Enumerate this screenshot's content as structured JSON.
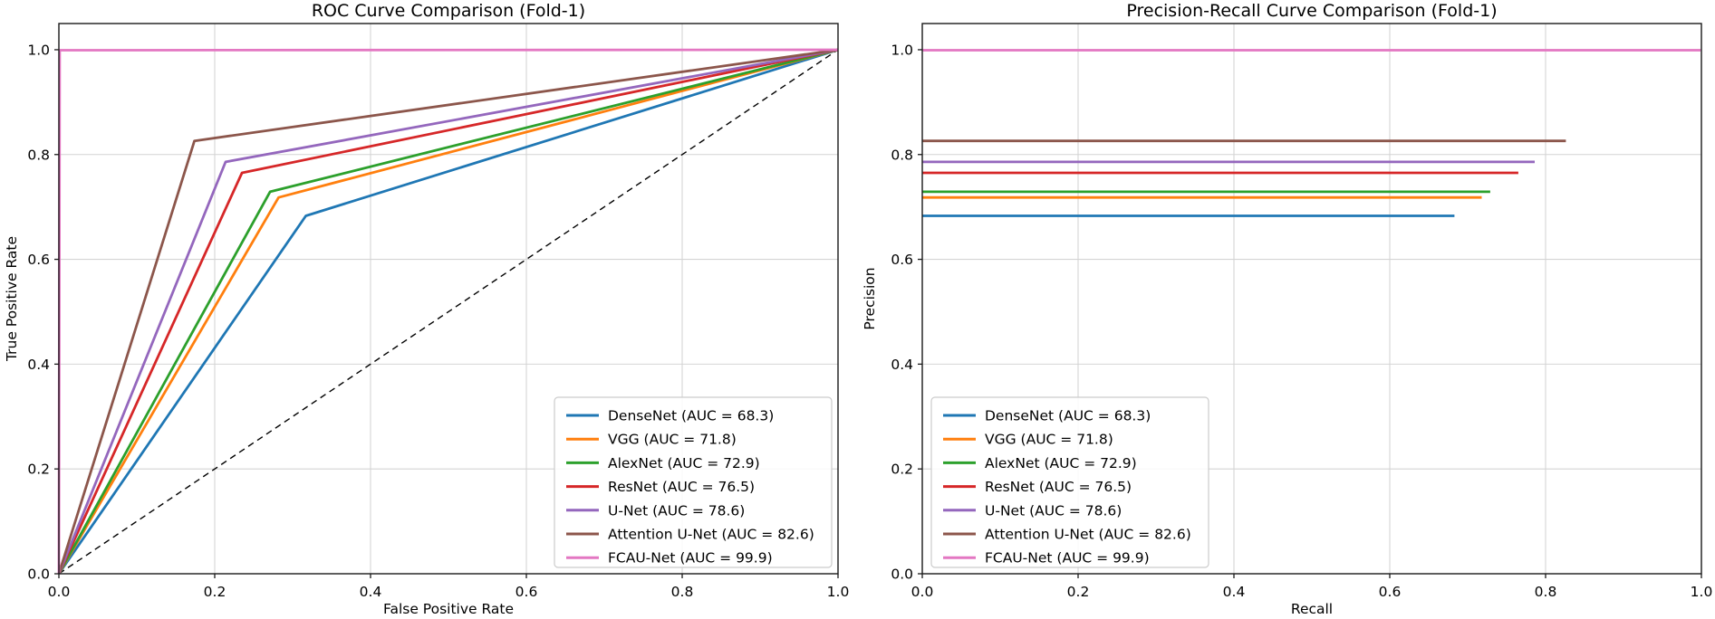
{
  "figure": {
    "background": "#ffffff",
    "text_color": "#000000"
  },
  "chart_data": [
    {
      "type": "line",
      "title": "ROC Curve Comparison (Fold-1)",
      "xlabel": "False Positive Rate",
      "ylabel": "True Positive Rate",
      "xlim": [
        0.0,
        1.0
      ],
      "ylim": [
        0.0,
        1.05
      ],
      "xticks": [
        0.0,
        0.2,
        0.4,
        0.6,
        0.8,
        1.0
      ],
      "yticks": [
        0.0,
        0.2,
        0.4,
        0.6,
        0.8,
        1.0
      ],
      "grid": true,
      "legend_position": "lower-right",
      "reference_line": {
        "name": "chance-diagonal",
        "from": [
          0.0,
          0.0
        ],
        "to": [
          1.0,
          1.0
        ],
        "color": "#000000",
        "dash": "7 5",
        "width": 1.4
      },
      "series": [
        {
          "name": "densenet",
          "label": "DenseNet (AUC = 68.3)",
          "auc": 68.3,
          "color": "#1f77b4",
          "points": [
            [
              0.0,
              0.0
            ],
            [
              0.317,
              0.683
            ],
            [
              1.0,
              1.0
            ]
          ]
        },
        {
          "name": "vgg",
          "label": "VGG (AUC = 71.8)",
          "auc": 71.8,
          "color": "#ff7f0e",
          "points": [
            [
              0.0,
              0.0
            ],
            [
              0.282,
              0.718
            ],
            [
              1.0,
              1.0
            ]
          ]
        },
        {
          "name": "alexnet",
          "label": "AlexNet (AUC = 72.9)",
          "auc": 72.9,
          "color": "#2ca02c",
          "points": [
            [
              0.0,
              0.0
            ],
            [
              0.271,
              0.729
            ],
            [
              1.0,
              1.0
            ]
          ]
        },
        {
          "name": "resnet",
          "label": "ResNet (AUC = 76.5)",
          "auc": 76.5,
          "color": "#d62728",
          "points": [
            [
              0.0,
              0.0
            ],
            [
              0.235,
              0.765
            ],
            [
              1.0,
              1.0
            ]
          ]
        },
        {
          "name": "unet",
          "label": "U-Net (AUC = 78.6)",
          "auc": 78.6,
          "color": "#9467bd",
          "points": [
            [
              0.0,
              0.0
            ],
            [
              0.214,
              0.786
            ],
            [
              1.0,
              1.0
            ]
          ]
        },
        {
          "name": "attention-unet",
          "label": "Attention U-Net (AUC = 82.6)",
          "auc": 82.6,
          "color": "#8c564b",
          "points": [
            [
              0.0,
              0.0
            ],
            [
              0.174,
              0.826
            ],
            [
              1.0,
              1.0
            ]
          ]
        },
        {
          "name": "fcau-net",
          "label": "FCAU-Net (AUC = 99.9)",
          "auc": 99.9,
          "color": "#e377c2",
          "points": [
            [
              0.0,
              0.0
            ],
            [
              0.001,
              0.999
            ],
            [
              1.0,
              1.0
            ]
          ]
        }
      ]
    },
    {
      "type": "line",
      "title": "Precision-Recall Curve Comparison (Fold-1)",
      "xlabel": "Recall",
      "ylabel": "Precision",
      "xlim": [
        0.0,
        1.0
      ],
      "ylim": [
        0.0,
        1.05
      ],
      "xticks": [
        0.0,
        0.2,
        0.4,
        0.6,
        0.8,
        1.0
      ],
      "yticks": [
        0.0,
        0.2,
        0.4,
        0.6,
        0.8,
        1.0
      ],
      "grid": true,
      "legend_position": "lower-left",
      "series": [
        {
          "name": "densenet",
          "label": "DenseNet (AUC = 68.3)",
          "auc": 68.3,
          "color": "#1f77b4",
          "points": [
            [
              0.0,
              0.683
            ],
            [
              0.683,
              0.683
            ]
          ]
        },
        {
          "name": "vgg",
          "label": "VGG (AUC = 71.8)",
          "auc": 71.8,
          "color": "#ff7f0e",
          "points": [
            [
              0.0,
              0.718
            ],
            [
              0.718,
              0.718
            ]
          ]
        },
        {
          "name": "alexnet",
          "label": "AlexNet (AUC = 72.9)",
          "auc": 72.9,
          "color": "#2ca02c",
          "points": [
            [
              0.0,
              0.729
            ],
            [
              0.729,
              0.729
            ]
          ]
        },
        {
          "name": "resnet",
          "label": "ResNet (AUC = 76.5)",
          "auc": 76.5,
          "color": "#d62728",
          "points": [
            [
              0.0,
              0.765
            ],
            [
              0.765,
              0.765
            ]
          ]
        },
        {
          "name": "unet",
          "label": "U-Net (AUC = 78.6)",
          "auc": 78.6,
          "color": "#9467bd",
          "points": [
            [
              0.0,
              0.786
            ],
            [
              0.786,
              0.786
            ]
          ]
        },
        {
          "name": "attention-unet",
          "label": "Attention U-Net (AUC = 82.6)",
          "auc": 82.6,
          "color": "#8c564b",
          "points": [
            [
              0.0,
              0.826
            ],
            [
              0.826,
              0.826
            ]
          ]
        },
        {
          "name": "fcau-net",
          "label": "FCAU-Net (AUC = 99.9)",
          "auc": 99.9,
          "color": "#e377c2",
          "points": [
            [
              0.0,
              0.999
            ],
            [
              0.999,
              0.999
            ]
          ]
        }
      ]
    }
  ]
}
